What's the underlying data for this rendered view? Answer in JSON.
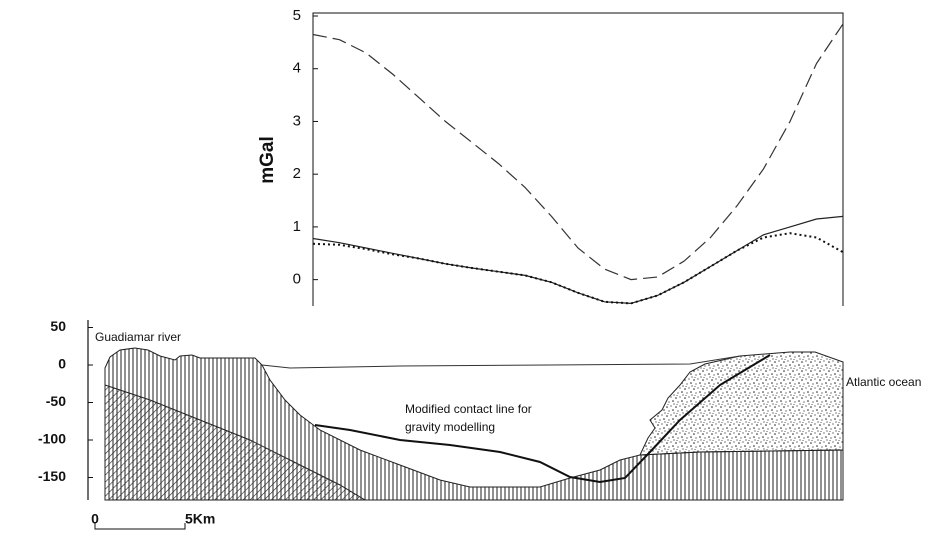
{
  "chart_data": [
    {
      "type": "line",
      "ylabel": "mGal",
      "ylim": [
        -0.5,
        5
      ],
      "yticks": [
        0,
        1,
        2,
        3,
        4,
        5
      ],
      "series": [
        {
          "color": "#333333",
          "dash": "dashed",
          "values": [
            4.65,
            4.55,
            4.3,
            3.9,
            3.45,
            3.0,
            2.6,
            2.2,
            1.75,
            1.2,
            0.6,
            0.2,
            0.0,
            0.05,
            0.35,
            0.8,
            1.4,
            2.1,
            3.0,
            4.1,
            4.85
          ]
        },
        {
          "color": "#222222",
          "dash": "solid",
          "values": [
            0.78,
            0.7,
            0.6,
            0.5,
            0.4,
            0.3,
            0.22,
            0.15,
            0.08,
            -0.05,
            -0.25,
            -0.42,
            -0.45,
            -0.3,
            -0.05,
            0.25,
            0.55,
            0.85,
            1.0,
            1.15,
            1.2
          ]
        },
        {
          "color": "#111111",
          "dash": "dotted",
          "values": [
            0.68,
            0.66,
            0.58,
            0.48,
            0.4,
            0.3,
            0.22,
            0.15,
            0.08,
            -0.05,
            -0.25,
            -0.42,
            -0.45,
            -0.3,
            -0.05,
            0.25,
            0.55,
            0.8,
            0.88,
            0.8,
            0.52
          ]
        }
      ]
    },
    {
      "type": "section",
      "ylim": [
        -180,
        60
      ],
      "yticks": [
        50,
        0,
        -50,
        -100,
        -150
      ],
      "annotations": [
        "Guadiamar river",
        "Atlantic ocean",
        "Modified contact line for",
        "gravity modelling"
      ],
      "scale": [
        "0",
        "5Km"
      ]
    }
  ]
}
